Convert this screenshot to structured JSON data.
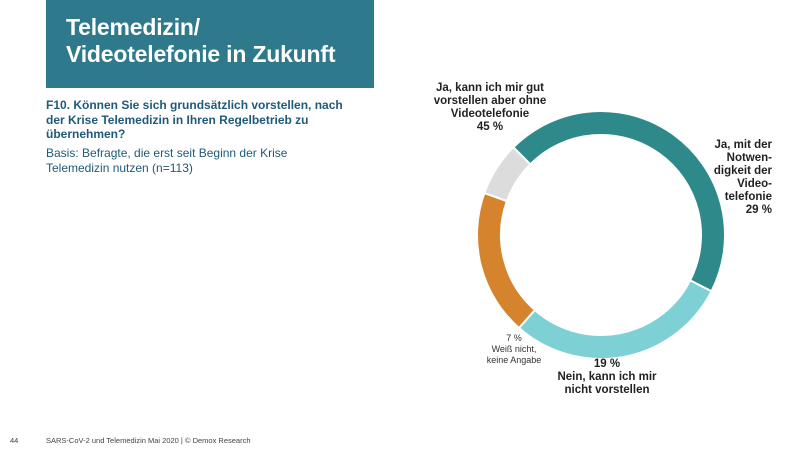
{
  "header": {
    "title_line1": "Telemedizin/",
    "title_line2": "Videotelefonie in Zukunft"
  },
  "question": "F10. Können Sie sich grundsätzlich vorstellen, nach der Krise Telemedizin in Ihren Regelbetrieb zu übernehmen?",
  "basis": "Basis: Befragte, die erst seit Beginn der Krise Telemedizin nutzen (n=113)",
  "chart_data": {
    "type": "pie",
    "donut": true,
    "slices": [
      {
        "label": "Ja, kann ich mir gut vorstellen aber ohne Videotelefonie",
        "value": 45,
        "value_label": "45 %",
        "color": "#2e8a8a"
      },
      {
        "label": "Ja, mit der Notwen-digkeit der Video-telefonie",
        "value": 29,
        "value_label": "29 %",
        "color": "#7dd0d3"
      },
      {
        "label": "Nein, kann ich mir nicht vorstellen",
        "value": 19,
        "value_label": "19 %",
        "color": "#d5832c"
      },
      {
        "label": "Weiß nicht, keine Angabe",
        "value": 7,
        "value_label": "7 %",
        "color": "#dcdcdc"
      }
    ]
  },
  "labels": {
    "s0_text": "Ja, kann ich mir gut\nvorstellen aber ohne\nVideotelefonie",
    "s0_pct": "45 %",
    "s1_text": "Ja, mit der\nNotwen-\ndigkeit der\nVideo-\ntelefonie",
    "s1_pct": "29 %",
    "s2_pct": "19 %",
    "s2_text": "Nein, kann ich mir\nnicht vorstellen",
    "s3_pct": "7 %",
    "s3_text": "Weiß nicht,\nkeine Angabe"
  },
  "footer": {
    "page_number": "44",
    "source": "SARS-CoV-2 und Telemedizin Mai 2020 | © Demox Research"
  }
}
